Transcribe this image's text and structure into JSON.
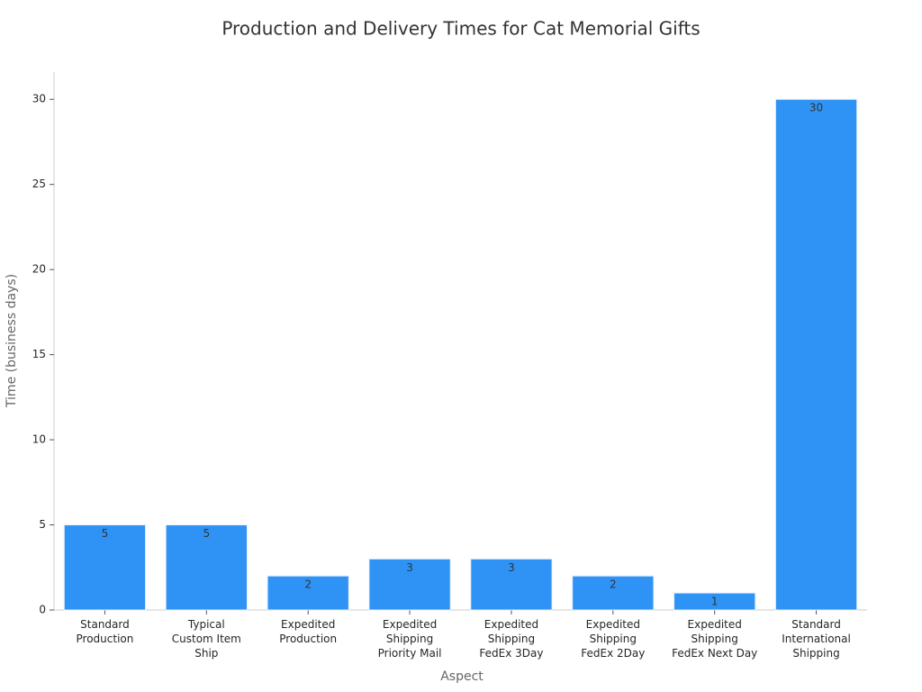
{
  "chart_data": {
    "type": "bar",
    "title": "Production and Delivery Times for Cat Memorial Gifts",
    "xlabel": "Aspect",
    "ylabel": "Time (business days)",
    "categories": [
      "Standard\nProduction",
      "Typical\nCustom Item\nShip",
      "Expedited\nProduction",
      "Expedited\nShipping\nPriority Mail",
      "Expedited\nShipping\nFedEx 3Day",
      "Expedited\nShipping\nFedEx 2Day",
      "Expedited\nShipping\nFedEx Next Day",
      "Standard\nInternational\nShipping"
    ],
    "values": [
      5,
      5,
      2,
      3,
      3,
      2,
      1,
      30
    ],
    "color": "#2f93f5",
    "ylim": [
      0,
      31.6
    ],
    "yticks": [
      0,
      5,
      10,
      15,
      20,
      25,
      30
    ],
    "grid": false
  }
}
